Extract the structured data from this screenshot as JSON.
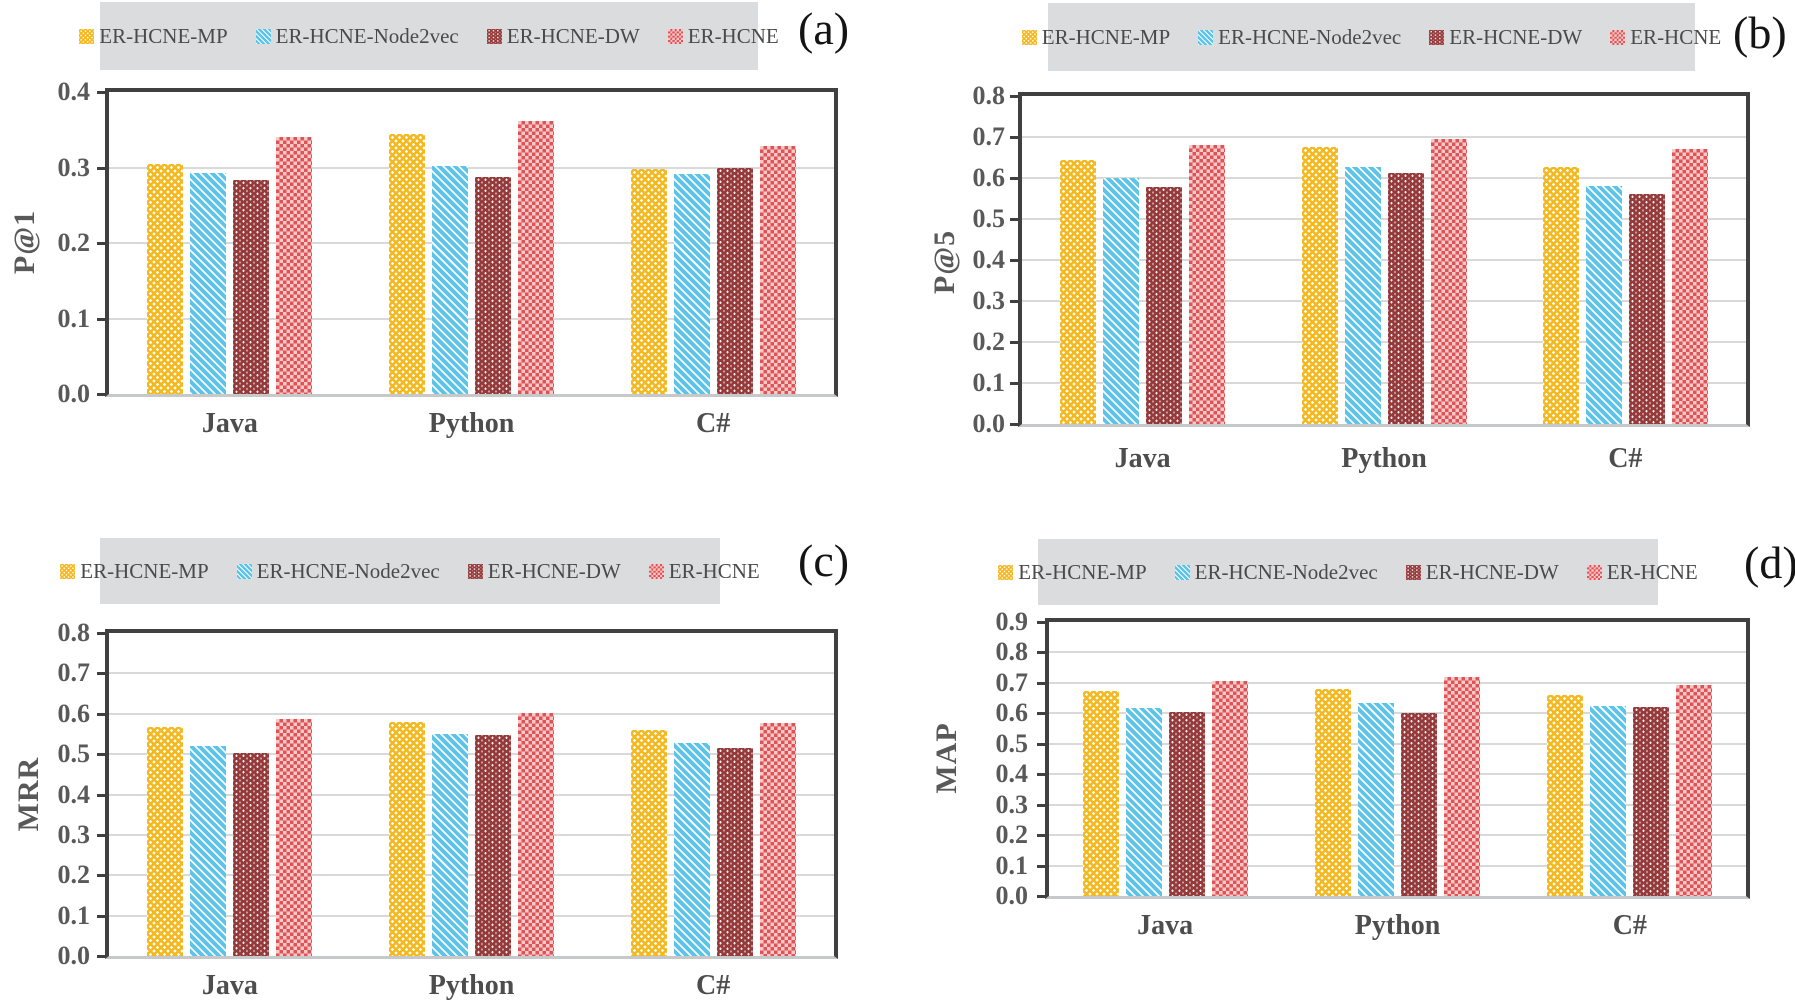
{
  "figure": {
    "description": "Four grouped bar chart panels comparing methods on P@1, P@5, MRR and MAP over Java, Python and C#",
    "panel_letters": [
      "(a)",
      "(b)",
      "(c)",
      "(d)"
    ]
  },
  "legend": {
    "items": [
      {
        "label": "ER-HCNE-MP",
        "pattern": "dots",
        "color": "#F4B920"
      },
      {
        "label": "ER-HCNE-Node2vec",
        "pattern": "diag",
        "color": "#5EC3E8"
      },
      {
        "label": "ER-HCNE-DW",
        "pattern": "dw-dots",
        "color": "#953A3B"
      },
      {
        "label": "ER-HCNE",
        "pattern": "checker",
        "color": "#DD5356",
        "color2": "#F7C9C9"
      }
    ]
  },
  "colors": {
    "legend_bg": "#DBDCDD",
    "gridline": "#D9D9D9",
    "frame": "#404040",
    "baseline": "#C7C8C9",
    "tick_text": "#595959",
    "xlabel_text": "#4D4D4D",
    "letter_text": "#141414"
  },
  "chart_data": [
    {
      "panel_id": "a",
      "panel_label": "(a)",
      "type": "bar",
      "ylabel": "P@1",
      "categories": [
        "Java",
        "Python",
        "C#"
      ],
      "ylim": [
        0,
        0.4
      ],
      "yticks": [
        "0.0",
        "0.1",
        "0.2",
        "0.3",
        "0.4"
      ],
      "grid": true,
      "legend_position": "top",
      "series": [
        {
          "name": "ER-HCNE-MP",
          "values": [
            0.305,
            0.345,
            0.298
          ]
        },
        {
          "name": "ER-HCNE-Node2vec",
          "values": [
            0.293,
            0.302,
            0.291
          ]
        },
        {
          "name": "ER-HCNE-DW",
          "values": [
            0.283,
            0.288,
            0.299
          ]
        },
        {
          "name": "ER-HCNE",
          "values": [
            0.341,
            0.362,
            0.328
          ]
        }
      ]
    },
    {
      "panel_id": "b",
      "panel_label": "(b)",
      "type": "bar",
      "ylabel": "P@5",
      "categories": [
        "Java",
        "Python",
        "C#"
      ],
      "ylim": [
        0,
        0.8
      ],
      "yticks": [
        "0.0",
        "0.1",
        "0.2",
        "0.3",
        "0.4",
        "0.5",
        "0.6",
        "0.7",
        "0.8"
      ],
      "grid": true,
      "legend_position": "top",
      "series": [
        {
          "name": "ER-HCNE-MP",
          "values": [
            0.645,
            0.675,
            0.628
          ]
        },
        {
          "name": "ER-HCNE-Node2vec",
          "values": [
            0.601,
            0.627,
            0.581
          ]
        },
        {
          "name": "ER-HCNE-DW",
          "values": [
            0.578,
            0.613,
            0.56
          ]
        },
        {
          "name": "ER-HCNE",
          "values": [
            0.681,
            0.696,
            0.671
          ]
        }
      ]
    },
    {
      "panel_id": "c",
      "panel_label": "(c)",
      "type": "bar",
      "ylabel": "MRR",
      "categories": [
        "Java",
        "Python",
        "C#"
      ],
      "ylim": [
        0,
        0.8
      ],
      "yticks": [
        "0.0",
        "0.1",
        "0.2",
        "0.3",
        "0.4",
        "0.5",
        "0.6",
        "0.7",
        "0.8"
      ],
      "grid": true,
      "legend_position": "top",
      "series": [
        {
          "name": "ER-HCNE-MP",
          "values": [
            0.566,
            0.579,
            0.561
          ]
        },
        {
          "name": "ER-HCNE-Node2vec",
          "values": [
            0.521,
            0.55,
            0.528
          ]
        },
        {
          "name": "ER-HCNE-DW",
          "values": [
            0.504,
            0.548,
            0.515
          ]
        },
        {
          "name": "ER-HCNE",
          "values": [
            0.586,
            0.603,
            0.576
          ]
        }
      ]
    },
    {
      "panel_id": "d",
      "panel_label": "(d)",
      "type": "bar",
      "ylabel": "MAP",
      "categories": [
        "Java",
        "Python",
        "C#"
      ],
      "ylim": [
        0,
        0.9
      ],
      "yticks": [
        "0.0",
        "0.1",
        "0.2",
        "0.3",
        "0.4",
        "0.5",
        "0.6",
        "0.7",
        "0.8",
        "0.9"
      ],
      "grid": true,
      "legend_position": "top",
      "series": [
        {
          "name": "ER-HCNE-MP",
          "values": [
            0.672,
            0.681,
            0.659
          ]
        },
        {
          "name": "ER-HCNE-Node2vec",
          "values": [
            0.618,
            0.635,
            0.624
          ]
        },
        {
          "name": "ER-HCNE-DW",
          "values": [
            0.605,
            0.602,
            0.62
          ]
        },
        {
          "name": "ER-HCNE",
          "values": [
            0.707,
            0.718,
            0.692
          ]
        }
      ]
    }
  ]
}
